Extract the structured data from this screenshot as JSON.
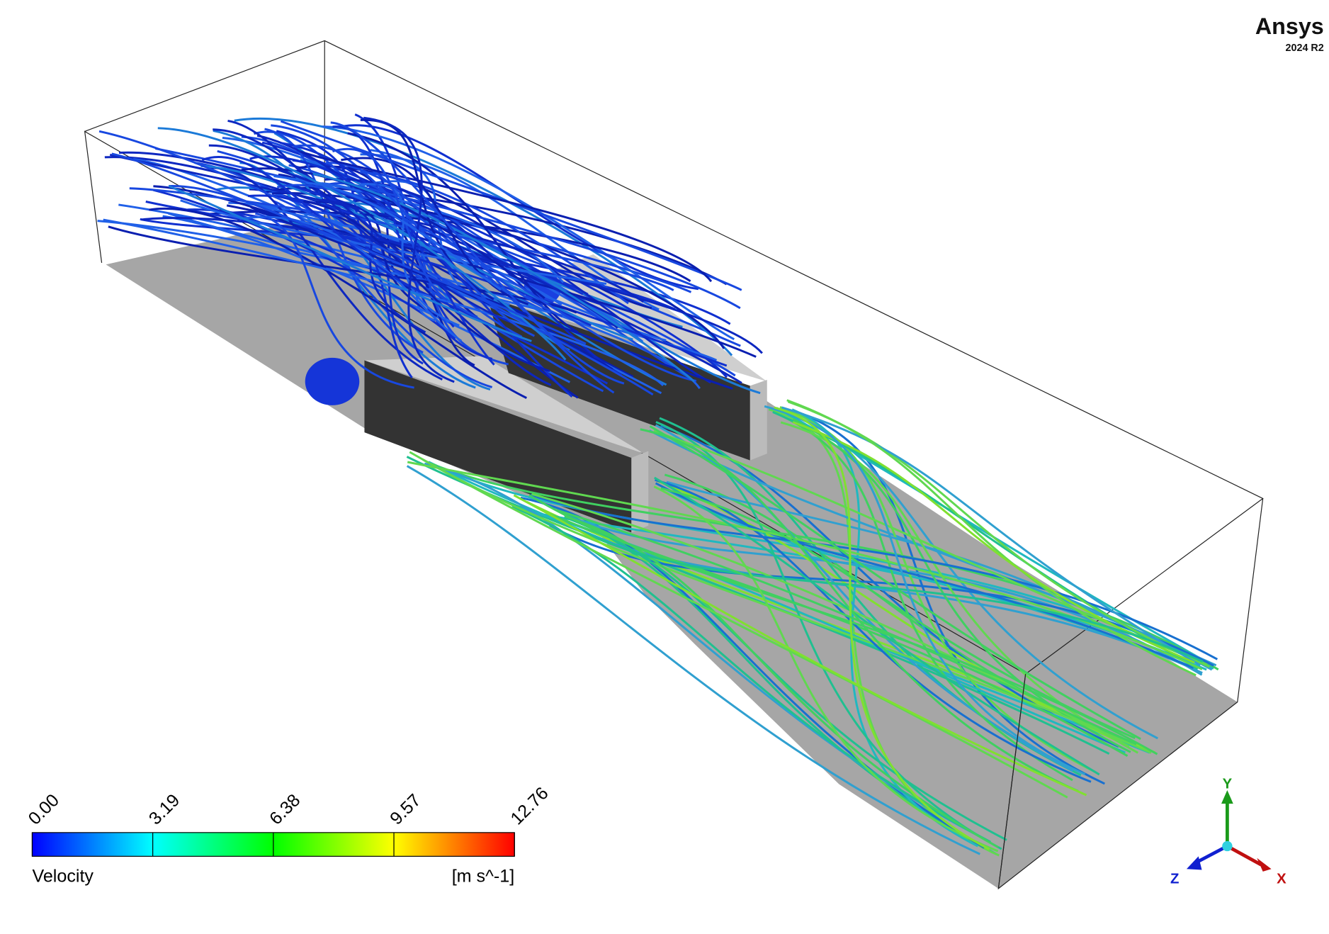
{
  "logo": {
    "name": "Ansys",
    "version": "2024 R2"
  },
  "legend": {
    "title": "Velocity",
    "unit": "[m s^-1]",
    "range": [
      0,
      12.76
    ],
    "ticks": [
      {
        "value": 0,
        "label": "0.00"
      },
      3.19,
      6.38,
      9.57,
      12.76
    ]
  },
  "triad": {
    "x": "X",
    "y": "Y",
    "z": "Z"
  }
}
